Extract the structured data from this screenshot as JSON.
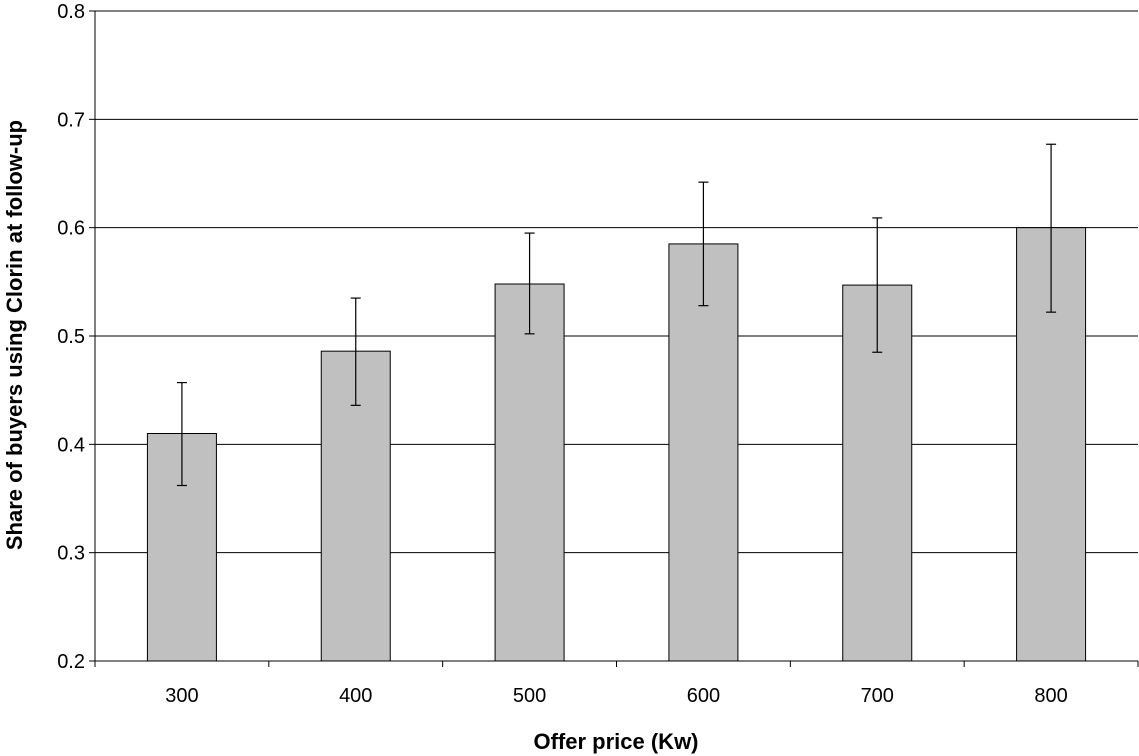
{
  "chart_data": {
    "type": "bar",
    "title": "",
    "xlabel": "Offer price (Kw)",
    "ylabel": "Share of buyers using Clorin at follow-up",
    "categories": [
      "300",
      "400",
      "500",
      "600",
      "700",
      "800"
    ],
    "values": [
      0.41,
      0.486,
      0.548,
      0.585,
      0.547,
      0.6
    ],
    "error_bars": {
      "upper": [
        0.457,
        0.535,
        0.595,
        0.642,
        0.609,
        0.677
      ],
      "lower": [
        0.362,
        0.436,
        0.502,
        0.528,
        0.485,
        0.522
      ]
    },
    "ylim": [
      0.2,
      0.8
    ],
    "yticks": [
      "0.2",
      "0.3",
      "0.4",
      "0.5",
      "0.6",
      "0.7",
      "0.8"
    ],
    "grid": "horizontal major gridlines",
    "legend": "none",
    "colors": {
      "bar_fill": "#c0c0c0",
      "bar_stroke": "#000000",
      "gridline": "#000000",
      "axis": "#000000"
    }
  }
}
